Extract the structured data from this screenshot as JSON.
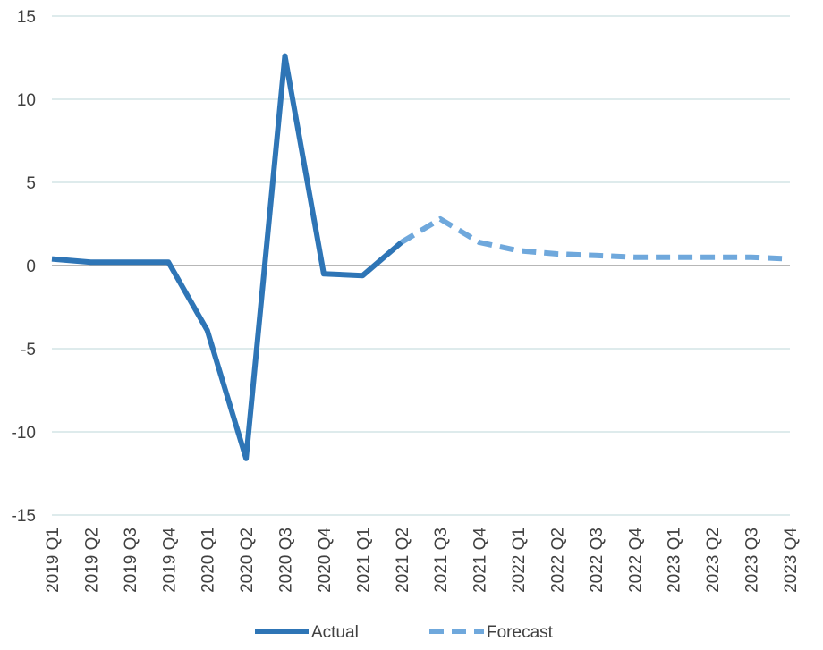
{
  "chart_data": {
    "type": "line",
    "title": "",
    "xlabel": "",
    "ylabel": "",
    "categories": [
      "2019 Q1",
      "2019 Q2",
      "2019 Q3",
      "2019 Q4",
      "2020 Q1",
      "2020 Q2",
      "2020 Q3",
      "2020 Q4",
      "2021 Q1",
      "2021 Q2",
      "2021 Q3",
      "2021 Q4",
      "2022 Q1",
      "2022 Q2",
      "2022 Q3",
      "2022 Q4",
      "2023 Q1",
      "2023 Q2",
      "2023 Q3",
      "2023 Q4"
    ],
    "ylim": [
      -15,
      15
    ],
    "yticks": [
      15,
      10,
      5,
      0,
      -5,
      -10,
      -15
    ],
    "ytick_labels": [
      "15",
      "10",
      "5",
      "0",
      "-5",
      "-10",
      "-15"
    ],
    "grid": true,
    "legend_position": "bottom",
    "series": [
      {
        "name": "Actual",
        "style": "solid",
        "color": "#2E75B6",
        "values": [
          0.4,
          0.2,
          0.2,
          0.2,
          -3.9,
          -11.6,
          12.6,
          -0.5,
          -0.6,
          1.4,
          null,
          null,
          null,
          null,
          null,
          null,
          null,
          null,
          null,
          null
        ]
      },
      {
        "name": "Forecast",
        "style": "dashed",
        "color": "#6FA8DC",
        "values": [
          null,
          null,
          null,
          null,
          null,
          null,
          null,
          null,
          null,
          1.4,
          2.8,
          1.4,
          0.9,
          0.7,
          0.6,
          0.5,
          0.5,
          0.5,
          0.5,
          0.4
        ]
      }
    ]
  },
  "colors": {
    "grid": "#BDD7D9",
    "zero_line": "#8C8C8C",
    "text": "#404040"
  }
}
